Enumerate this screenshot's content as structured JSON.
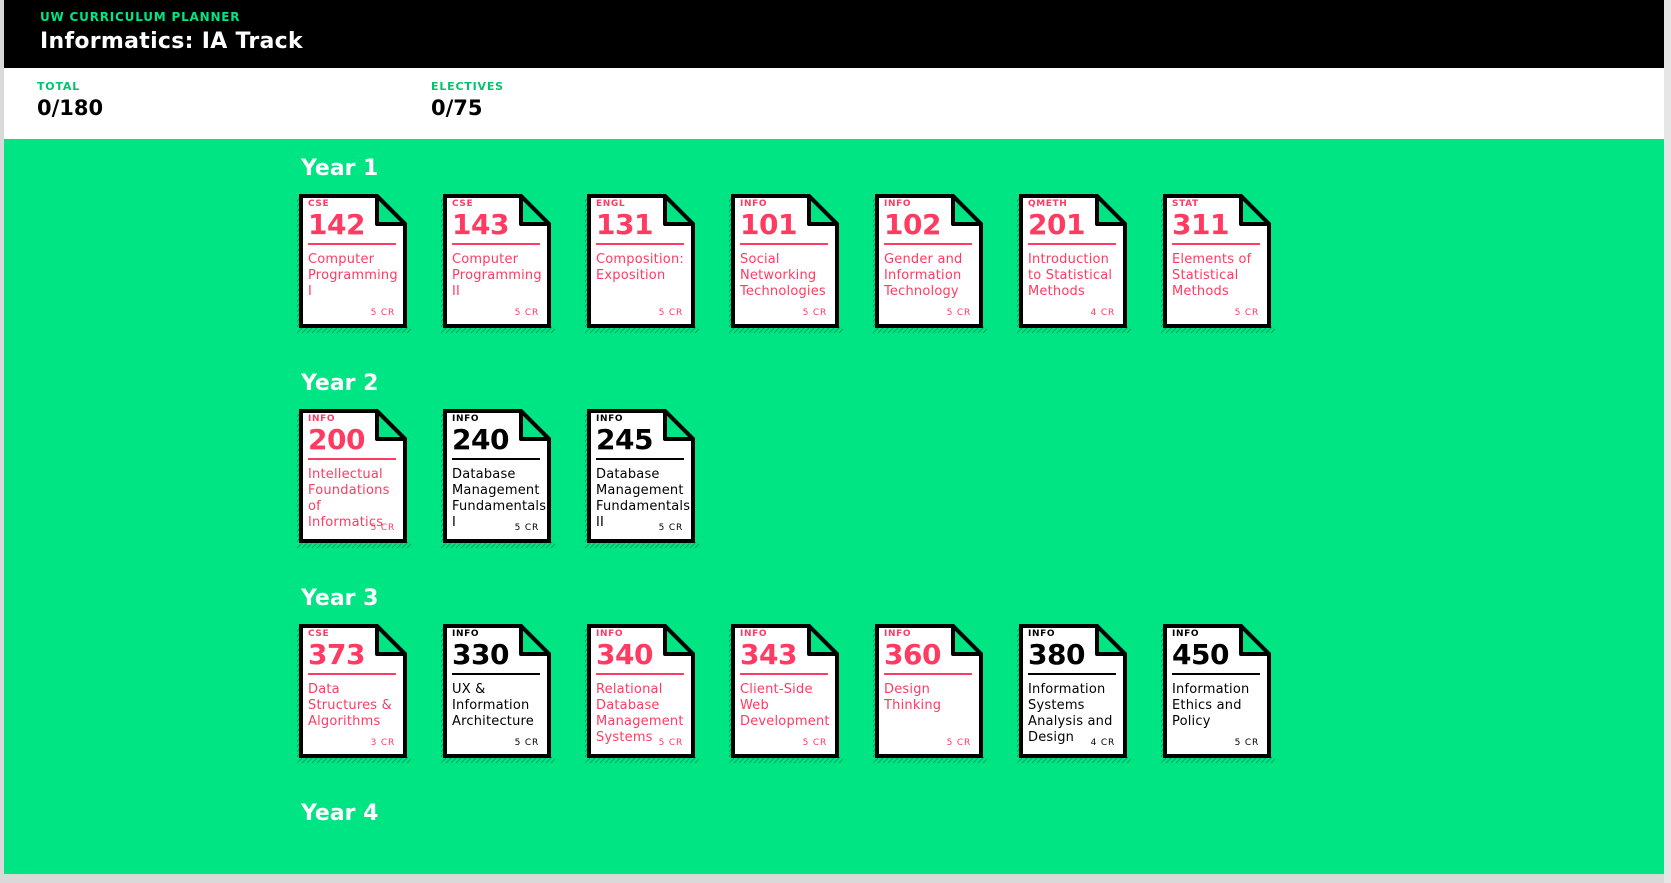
{
  "app": {
    "kicker": "UW CURRICULUM PLANNER",
    "title": "Informatics: IA Track"
  },
  "stats": [
    {
      "label": "TOTAL",
      "value": "0/180"
    },
    {
      "label": "ELECTIVES",
      "value": "0/75"
    }
  ],
  "colors": {
    "accent": "#00e584",
    "required": "#ff3b62",
    "optional": "#000000",
    "header": "#000000"
  },
  "years": [
    {
      "label": "Year 1",
      "courses": [
        {
          "dept": "CSE",
          "number": "142",
          "name": "Computer Programming I",
          "credits": "5 CR",
          "status": "pink"
        },
        {
          "dept": "CSE",
          "number": "143",
          "name": "Computer Programming II",
          "credits": "5 CR",
          "status": "pink"
        },
        {
          "dept": "ENGL",
          "number": "131",
          "name": "Composition: Exposition",
          "credits": "5 CR",
          "status": "pink"
        },
        {
          "dept": "INFO",
          "number": "101",
          "name": "Social Networking Technologies",
          "credits": "5 CR",
          "status": "pink"
        },
        {
          "dept": "INFO",
          "number": "102",
          "name": "Gender and Information Technology",
          "credits": "5 CR",
          "status": "pink"
        },
        {
          "dept": "QMETH",
          "number": "201",
          "name": "Introduction to Statistical Methods",
          "credits": "4 CR",
          "status": "pink"
        },
        {
          "dept": "STAT",
          "number": "311",
          "name": "Elements of Statistical Methods",
          "credits": "5 CR",
          "status": "pink"
        }
      ]
    },
    {
      "label": "Year 2",
      "courses": [
        {
          "dept": "INFO",
          "number": "200",
          "name": "Intellectual Foundations of Informatics",
          "credits": "5 CR",
          "status": "pink"
        },
        {
          "dept": "INFO",
          "number": "240",
          "name": "Database Management Fundamentals I",
          "credits": "5 CR",
          "status": "black"
        },
        {
          "dept": "INFO",
          "number": "245",
          "name": "Database Management Fundamentals II",
          "credits": "5 CR",
          "status": "black"
        }
      ]
    },
    {
      "label": "Year 3",
      "courses": [
        {
          "dept": "CSE",
          "number": "373",
          "name": "Data Structures & Algorithms",
          "credits": "3 CR",
          "status": "pink"
        },
        {
          "dept": "INFO",
          "number": "330",
          "name": "UX & Information Architecture",
          "credits": "5 CR",
          "status": "black"
        },
        {
          "dept": "INFO",
          "number": "340",
          "name": "Relational Database Management Systems",
          "credits": "5 CR",
          "status": "pink"
        },
        {
          "dept": "INFO",
          "number": "343",
          "name": "Client-Side Web Development",
          "credits": "5 CR",
          "status": "pink"
        },
        {
          "dept": "INFO",
          "number": "360",
          "name": "Design Thinking",
          "credits": "5 CR",
          "status": "pink"
        },
        {
          "dept": "INFO",
          "number": "380",
          "name": "Information Systems Analysis and Design",
          "credits": "4 CR",
          "status": "black"
        },
        {
          "dept": "INFO",
          "number": "450",
          "name": "Information Ethics and Policy",
          "credits": "5 CR",
          "status": "black"
        }
      ]
    },
    {
      "label": "Year 4",
      "courses": []
    }
  ]
}
